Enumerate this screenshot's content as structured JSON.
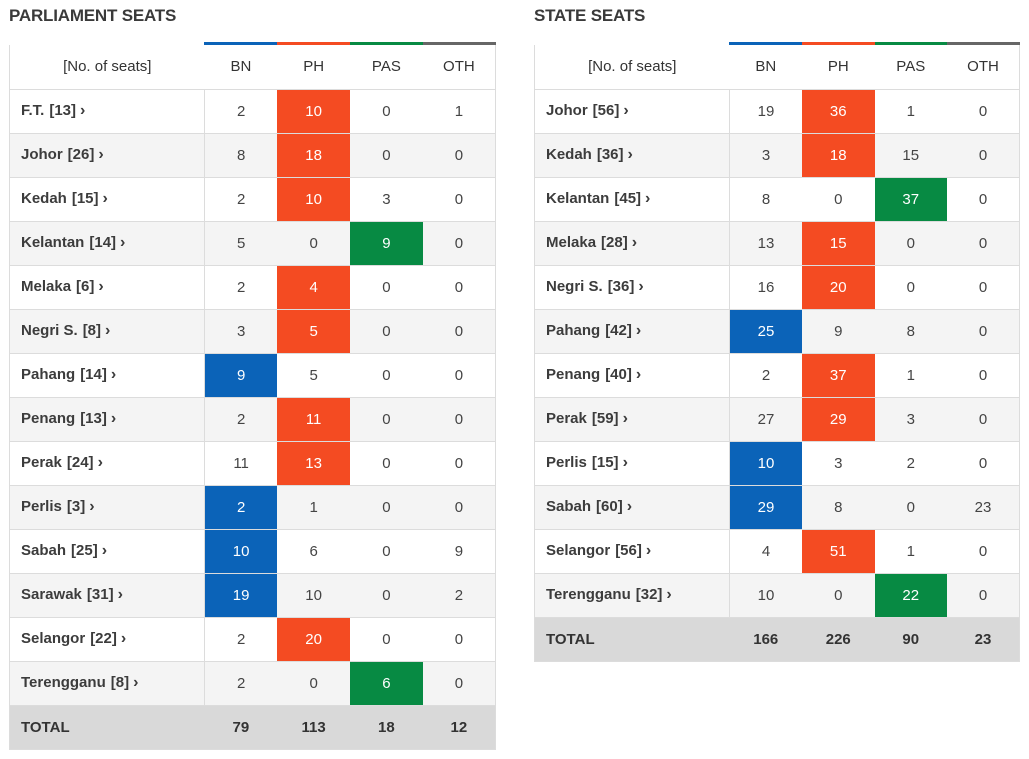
{
  "colors": {
    "BN": "#0b63b8",
    "PH": "#f44b22",
    "PAS": "#078a43",
    "OTH": "#666666"
  },
  "parliament": {
    "title": "PARLIAMENT SEATS",
    "header": {
      "label": "[No. of seats]",
      "bn": "BN",
      "ph": "PH",
      "pas": "PAS",
      "oth": "OTH"
    },
    "rows": [
      {
        "name": "F.T.",
        "seats": "[13]",
        "bn": "2",
        "ph": "10",
        "pas": "0",
        "oth": "1",
        "winner": "ph"
      },
      {
        "name": "Johor",
        "seats": "[26]",
        "bn": "8",
        "ph": "18",
        "pas": "0",
        "oth": "0",
        "winner": "ph"
      },
      {
        "name": "Kedah",
        "seats": "[15]",
        "bn": "2",
        "ph": "10",
        "pas": "3",
        "oth": "0",
        "winner": "ph"
      },
      {
        "name": "Kelantan",
        "seats": "[14]",
        "bn": "5",
        "ph": "0",
        "pas": "9",
        "oth": "0",
        "winner": "pas"
      },
      {
        "name": "Melaka",
        "seats": "[6]",
        "bn": "2",
        "ph": "4",
        "pas": "0",
        "oth": "0",
        "winner": "ph"
      },
      {
        "name": "Negri S.",
        "seats": "[8]",
        "bn": "3",
        "ph": "5",
        "pas": "0",
        "oth": "0",
        "winner": "ph"
      },
      {
        "name": "Pahang",
        "seats": "[14]",
        "bn": "9",
        "ph": "5",
        "pas": "0",
        "oth": "0",
        "winner": "bn"
      },
      {
        "name": "Penang",
        "seats": "[13]",
        "bn": "2",
        "ph": "11",
        "pas": "0",
        "oth": "0",
        "winner": "ph"
      },
      {
        "name": "Perak",
        "seats": "[24]",
        "bn": "11",
        "ph": "13",
        "pas": "0",
        "oth": "0",
        "winner": "ph"
      },
      {
        "name": "Perlis",
        "seats": "[3]",
        "bn": "2",
        "ph": "1",
        "pas": "0",
        "oth": "0",
        "winner": "bn"
      },
      {
        "name": "Sabah",
        "seats": "[25]",
        "bn": "10",
        "ph": "6",
        "pas": "0",
        "oth": "9",
        "winner": "bn"
      },
      {
        "name": "Sarawak",
        "seats": "[31]",
        "bn": "19",
        "ph": "10",
        "pas": "0",
        "oth": "2",
        "winner": "bn"
      },
      {
        "name": "Selangor",
        "seats": "[22]",
        "bn": "2",
        "ph": "20",
        "pas": "0",
        "oth": "0",
        "winner": "ph"
      },
      {
        "name": "Terengganu",
        "seats": "[8]",
        "bn": "2",
        "ph": "0",
        "pas": "6",
        "oth": "0",
        "winner": "pas"
      }
    ],
    "total": {
      "label": "TOTAL",
      "bn": "79",
      "ph": "113",
      "pas": "18",
      "oth": "12"
    }
  },
  "state": {
    "title": "STATE SEATS",
    "header": {
      "label": "[No. of seats]",
      "bn": "BN",
      "ph": "PH",
      "pas": "PAS",
      "oth": "OTH"
    },
    "rows": [
      {
        "name": "Johor",
        "seats": "[56]",
        "bn": "19",
        "ph": "36",
        "pas": "1",
        "oth": "0",
        "winner": "ph"
      },
      {
        "name": "Kedah",
        "seats": "[36]",
        "bn": "3",
        "ph": "18",
        "pas": "15",
        "oth": "0",
        "winner": "ph"
      },
      {
        "name": "Kelantan",
        "seats": "[45]",
        "bn": "8",
        "ph": "0",
        "pas": "37",
        "oth": "0",
        "winner": "pas"
      },
      {
        "name": "Melaka",
        "seats": "[28]",
        "bn": "13",
        "ph": "15",
        "pas": "0",
        "oth": "0",
        "winner": "ph"
      },
      {
        "name": "Negri S.",
        "seats": "[36]",
        "bn": "16",
        "ph": "20",
        "pas": "0",
        "oth": "0",
        "winner": "ph"
      },
      {
        "name": "Pahang",
        "seats": "[42]",
        "bn": "25",
        "ph": "9",
        "pas": "8",
        "oth": "0",
        "winner": "bn"
      },
      {
        "name": "Penang",
        "seats": "[40]",
        "bn": "2",
        "ph": "37",
        "pas": "1",
        "oth": "0",
        "winner": "ph"
      },
      {
        "name": "Perak",
        "seats": "[59]",
        "bn": "27",
        "ph": "29",
        "pas": "3",
        "oth": "0",
        "winner": "ph"
      },
      {
        "name": "Perlis",
        "seats": "[15]",
        "bn": "10",
        "ph": "3",
        "pas": "2",
        "oth": "0",
        "winner": "bn"
      },
      {
        "name": "Sabah",
        "seats": "[60]",
        "bn": "29",
        "ph": "8",
        "pas": "0",
        "oth": "23",
        "winner": "bn"
      },
      {
        "name": "Selangor",
        "seats": "[56]",
        "bn": "4",
        "ph": "51",
        "pas": "1",
        "oth": "0",
        "winner": "ph"
      },
      {
        "name": "Terengganu",
        "seats": "[32]",
        "bn": "10",
        "ph": "0",
        "pas": "22",
        "oth": "0",
        "winner": "pas"
      }
    ],
    "total": {
      "label": "TOTAL",
      "bn": "166",
      "ph": "226",
      "pas": "90",
      "oth": "23"
    }
  }
}
